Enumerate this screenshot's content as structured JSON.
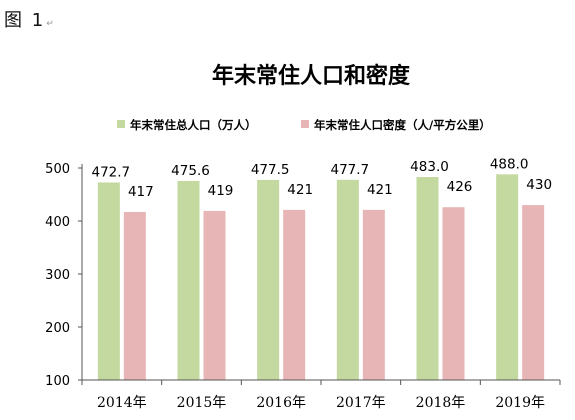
{
  "figure": {
    "label": "图 1",
    "mark": "↵"
  },
  "colors": {
    "population": "#c3d99f",
    "density": "#e7b5b5",
    "axis": "#555555"
  },
  "chart_data": {
    "type": "bar",
    "title": "年末常住人口和密度",
    "categories": [
      "2014年",
      "2015年",
      "2016年",
      "2017年",
      "2018年",
      "2019年"
    ],
    "series": [
      {
        "name": "年末常住总人口（万人）",
        "values": [
          472.7,
          475.6,
          477.5,
          477.7,
          483.0,
          488.0
        ],
        "labels": [
          "472.7",
          "475.6",
          "477.5",
          "477.7",
          "483.0",
          "488.0"
        ]
      },
      {
        "name": "年末常住人口密度（人/平方公里）",
        "values": [
          417,
          419,
          421,
          421,
          426,
          430
        ],
        "labels": [
          "417",
          "419",
          "421",
          "421",
          "426",
          "430"
        ]
      }
    ],
    "yticks": [
      "100",
      "200",
      "300",
      "400",
      "500"
    ],
    "ylim": [
      100,
      500
    ],
    "legend": "top",
    "grid": false
  }
}
